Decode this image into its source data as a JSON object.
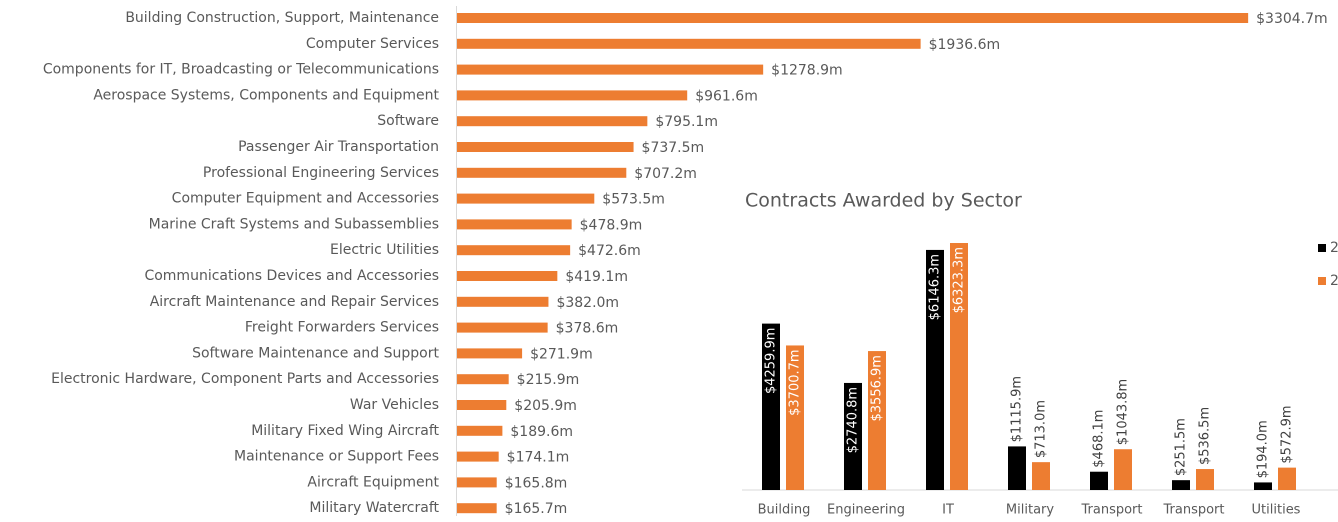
{
  "chart_data": [
    {
      "type": "hbar",
      "categories": [
        "Building Construction, Support, Maintenance",
        "Computer Services",
        "Components for IT, Broadcasting or Telecommunications",
        "Aerospace Systems, Components and Equipment",
        "Software",
        "Passenger Air Transportation",
        "Professional Engineering Services",
        "Computer Equipment and Accessories",
        "Marine Craft Systems and Subassemblies",
        "Electric Utilities",
        "Communications Devices and Accessories",
        "Aircraft Maintenance and Repair Services",
        "Freight Forwarders Services",
        "Software Maintenance and Support",
        "Electronic Hardware, Component Parts and Accessories",
        "War Vehicles",
        "Military Fixed Wing Aircraft",
        "Maintenance or Support Fees",
        "Aircraft Equipment",
        "Military Watercraft"
      ],
      "values": [
        3304.7,
        1936.6,
        1278.9,
        961.6,
        795.1,
        737.5,
        707.2,
        573.5,
        478.9,
        472.6,
        419.1,
        382.0,
        378.6,
        271.9,
        215.9,
        205.9,
        189.6,
        174.1,
        165.8,
        165.7
      ],
      "value_labels": [
        "$3304.7m",
        "$1936.6m",
        "$1278.9m",
        "$961.6m",
        "$795.1m",
        "$737.5m",
        "$707.2m",
        "$573.5m",
        "$478.9m",
        "$472.6m",
        "$419.1m",
        "$382.0m",
        "$378.6m",
        "$271.9m",
        "$215.9m",
        "$205.9m",
        "$189.6m",
        "$174.1m",
        "$165.8m",
        "$165.7m"
      ],
      "color": "#ed7d31"
    },
    {
      "type": "grouped-bar",
      "title": "Contracts Awarded by Sector",
      "categories": [
        "Building",
        "Engineering",
        "IT",
        "Military",
        "Transport",
        "Transport",
        "Utilities"
      ],
      "series": [
        {
          "name": "2",
          "color": "#000000",
          "values": [
            4259.9,
            2740.8,
            6146.3,
            1115.9,
            468.1,
            251.5,
            194.0
          ],
          "value_labels": [
            "$4259.9m",
            "$2740.8m",
            "$6146.3m",
            "$1115.9m",
            "$468.1m",
            "$251.5m",
            "$194.0m"
          ]
        },
        {
          "name": "2",
          "color": "#ed7d31",
          "values": [
            3700.7,
            3556.9,
            6323.3,
            713.0,
            1043.8,
            536.5,
            572.9
          ],
          "value_labels": [
            "$3700.7m",
            "$3556.9m",
            "$6323.3m",
            "$713.0m",
            "$1043.8m",
            "$536.5m",
            "$572.9m"
          ]
        }
      ]
    }
  ]
}
